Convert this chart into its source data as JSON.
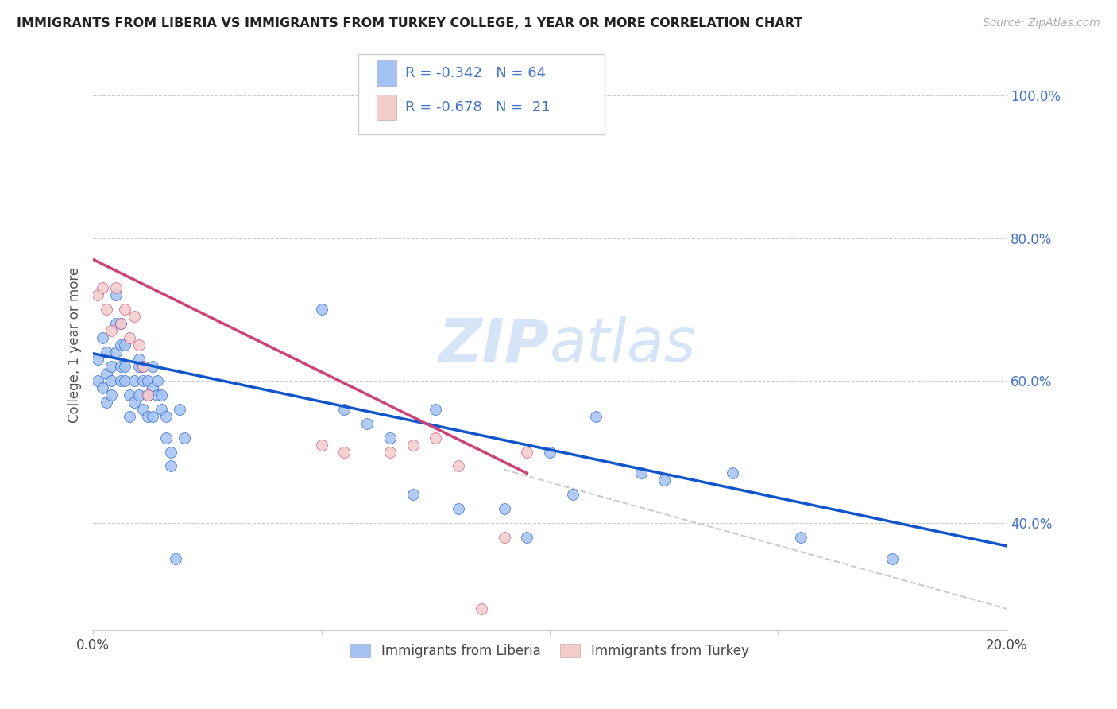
{
  "title": "IMMIGRANTS FROM LIBERIA VS IMMIGRANTS FROM TURKEY COLLEGE, 1 YEAR OR MORE CORRELATION CHART",
  "source": "Source: ZipAtlas.com",
  "ylabel": "College, 1 year or more",
  "xlim": [
    0.0,
    0.2
  ],
  "ylim": [
    0.25,
    1.05
  ],
  "xticks": [
    0.0,
    0.05,
    0.1,
    0.15,
    0.2
  ],
  "xticklabels": [
    "0.0%",
    "",
    "",
    "",
    "20.0%"
  ],
  "yticks_right": [
    0.4,
    0.6,
    0.8,
    1.0
  ],
  "yticklabels_right": [
    "40.0%",
    "60.0%",
    "80.0%",
    "100.0%"
  ],
  "legend_blue_r": "R = -0.342",
  "legend_blue_n": "N = 64",
  "legend_pink_r": "R = -0.678",
  "legend_pink_n": "N =  21",
  "legend_label_blue": "Immigrants from Liberia",
  "legend_label_pink": "Immigrants from Turkey",
  "blue_color": "#a4c2f4",
  "pink_color": "#f4cccc",
  "blue_line_color": "#1155cc",
  "pink_line_color": "#cc4477",
  "dashed_line_color": "#cccccc",
  "text_color": "#4472c4",
  "watermark_color": "#d6e4f7",
  "blue_scatter_x": [
    0.001,
    0.001,
    0.002,
    0.002,
    0.003,
    0.003,
    0.003,
    0.004,
    0.004,
    0.004,
    0.005,
    0.005,
    0.005,
    0.006,
    0.006,
    0.006,
    0.006,
    0.007,
    0.007,
    0.007,
    0.008,
    0.008,
    0.009,
    0.009,
    0.01,
    0.01,
    0.01,
    0.011,
    0.011,
    0.011,
    0.012,
    0.012,
    0.012,
    0.013,
    0.013,
    0.013,
    0.014,
    0.014,
    0.015,
    0.015,
    0.016,
    0.016,
    0.017,
    0.017,
    0.018,
    0.019,
    0.02,
    0.05,
    0.055,
    0.06,
    0.065,
    0.07,
    0.075,
    0.08,
    0.09,
    0.095,
    0.1,
    0.105,
    0.11,
    0.12,
    0.125,
    0.14,
    0.155,
    0.175
  ],
  "blue_scatter_y": [
    0.63,
    0.6,
    0.66,
    0.59,
    0.64,
    0.61,
    0.57,
    0.62,
    0.6,
    0.58,
    0.68,
    0.72,
    0.64,
    0.68,
    0.65,
    0.62,
    0.6,
    0.65,
    0.62,
    0.6,
    0.55,
    0.58,
    0.57,
    0.6,
    0.62,
    0.63,
    0.58,
    0.62,
    0.6,
    0.56,
    0.6,
    0.58,
    0.55,
    0.62,
    0.59,
    0.55,
    0.58,
    0.6,
    0.56,
    0.58,
    0.55,
    0.52,
    0.5,
    0.48,
    0.35,
    0.56,
    0.52,
    0.7,
    0.56,
    0.54,
    0.52,
    0.44,
    0.56,
    0.42,
    0.42,
    0.38,
    0.5,
    0.44,
    0.55,
    0.47,
    0.46,
    0.47,
    0.38,
    0.35
  ],
  "pink_scatter_x": [
    0.001,
    0.002,
    0.003,
    0.004,
    0.005,
    0.006,
    0.007,
    0.008,
    0.009,
    0.01,
    0.011,
    0.012,
    0.05,
    0.055,
    0.065,
    0.07,
    0.075,
    0.08,
    0.085,
    0.09,
    0.095
  ],
  "pink_scatter_y": [
    0.72,
    0.73,
    0.7,
    0.67,
    0.73,
    0.68,
    0.7,
    0.66,
    0.69,
    0.65,
    0.62,
    0.58,
    0.51,
    0.5,
    0.5,
    0.51,
    0.52,
    0.48,
    0.28,
    0.38,
    0.5
  ],
  "blue_line_x": [
    0.0,
    0.2
  ],
  "blue_line_y": [
    0.638,
    0.368
  ],
  "pink_line_x": [
    0.0,
    0.095
  ],
  "pink_line_y": [
    0.77,
    0.47
  ],
  "dashed_line_x": [
    0.09,
    0.2
  ],
  "dashed_line_y": [
    0.475,
    0.28
  ]
}
